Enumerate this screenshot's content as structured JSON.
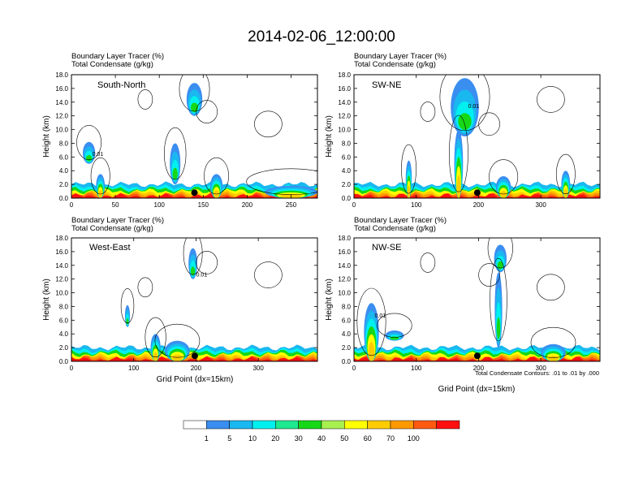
{
  "figure": {
    "title": "2014-02-06_12:00:00",
    "subtitle_line1": "Boundary Layer Tracer    (%)",
    "subtitle_line2": "Total Condensate    (g/kg)",
    "footnote": "Total Condensate Contours: .01 to .01 by .000",
    "xlabel": "Grid Point (dx=15km)",
    "ylabel": "Height (km)"
  },
  "colorbar": {
    "levels": [
      "1",
      "5",
      "10",
      "20",
      "30",
      "40",
      "50",
      "60",
      "70",
      "100"
    ],
    "colors": [
      "#ffffff",
      "#3a8ef0",
      "#1ab8f0",
      "#00f0f0",
      "#1ee890",
      "#16d816",
      "#a8f050",
      "#ffff00",
      "#ffcc00",
      "#ff9900",
      "#ff5a10",
      "#ff1010"
    ]
  },
  "chart_data": [
    {
      "type": "heatmap",
      "panel_label": "South-North",
      "title": "Boundary Layer Tracer (%) / Total Condensate (g/kg)",
      "xlabel": "",
      "ylabel": "Height (km)",
      "xlim": [
        0,
        280
      ],
      "ylim": [
        0,
        18
      ],
      "xticks": [
        "0",
        "50",
        "100",
        "150",
        "200",
        "250"
      ],
      "yticks": [
        "0.0",
        "2.0",
        "4.0",
        "6.0",
        "8.0",
        "10.0",
        "12.0",
        "14.0",
        "16.0",
        "18.0"
      ],
      "contour_label": "0.01",
      "marker": {
        "x": 140,
        "y": 0.8
      },
      "features": [
        {
          "x": 20,
          "top": 8.2,
          "base": 5.0,
          "w": 14
        },
        {
          "x": 33,
          "top": 3.5,
          "w": 10
        },
        {
          "x": 140,
          "top": 16.8,
          "base": 12.0,
          "w": 18
        },
        {
          "x": 118,
          "top": 8.0,
          "base": 2.0,
          "w": 12
        },
        {
          "x": 165,
          "top": 3.5,
          "w": 14
        },
        {
          "x": 250,
          "top": 1.8,
          "w": 60
        }
      ]
    },
    {
      "type": "heatmap",
      "panel_label": "SW-NE",
      "title": "Boundary Layer Tracer (%) / Total Condensate (g/kg)",
      "xlabel": "",
      "ylabel": "Height (km)",
      "xlim": [
        0,
        395
      ],
      "ylim": [
        0,
        18
      ],
      "xticks": [
        "0",
        "100",
        "200",
        "300"
      ],
      "yticks": [
        "0.0",
        "2.0",
        "4.0",
        "6.0",
        "8.0",
        "10.0",
        "12.0",
        "14.0",
        "16.0",
        "18.0"
      ],
      "contour_label": "0.01",
      "marker": {
        "x": 198,
        "y": 0.8
      },
      "features": [
        {
          "x": 178,
          "top": 17.5,
          "base": 9.0,
          "w": 45
        },
        {
          "x": 168,
          "top": 10.0,
          "w": 14
        },
        {
          "x": 88,
          "top": 5.5,
          "w": 10
        },
        {
          "x": 340,
          "top": 4.0,
          "w": 14
        },
        {
          "x": 240,
          "top": 3.2,
          "w": 24
        }
      ]
    },
    {
      "type": "heatmap",
      "panel_label": "West-East",
      "title": "Boundary Layer Tracer (%) / Total Condensate (g/kg)",
      "xlabel": "Grid Point (dx=15km)",
      "ylabel": "Height (km)",
      "xlim": [
        0,
        395
      ],
      "ylim": [
        0,
        18
      ],
      "xticks": [
        "0",
        "100",
        "200",
        "300"
      ],
      "yticks": [
        "0.0",
        "2.0",
        "4.0",
        "6.0",
        "8.0",
        "10.0",
        "12.0",
        "14.0",
        "16.0",
        "18.0"
      ],
      "contour_label": "0.01",
      "marker": {
        "x": 198,
        "y": 0.8
      },
      "features": [
        {
          "x": 195,
          "top": 16.5,
          "base": 12.0,
          "w": 14
        },
        {
          "x": 90,
          "top": 8.2,
          "base": 5.0,
          "w": 8
        },
        {
          "x": 135,
          "top": 4.0,
          "w": 16
        },
        {
          "x": 170,
          "top": 3.0,
          "w": 40
        }
      ]
    },
    {
      "type": "heatmap",
      "panel_label": "NW-SE",
      "title": "Boundary Layer Tracer (%) / Total Condensate (g/kg)",
      "xlabel": "Grid Point (dx=15km)",
      "ylabel": "Height (km)",
      "xlim": [
        0,
        395
      ],
      "ylim": [
        0,
        18
      ],
      "xticks": [
        "0",
        "100",
        "200",
        "300"
      ],
      "yticks": [
        "0.0",
        "2.0",
        "4.0",
        "6.0",
        "8.0",
        "10.0",
        "12.0",
        "14.0",
        "16.0",
        "18.0"
      ],
      "contour_label": "0.01",
      "marker": {
        "x": 198,
        "y": 0.8
      },
      "features": [
        {
          "x": 28,
          "top": 8.5,
          "w": 24
        },
        {
          "x": 65,
          "top": 4.5,
          "base": 3.0,
          "w": 30
        },
        {
          "x": 235,
          "top": 17.0,
          "base": 13.0,
          "w": 20
        },
        {
          "x": 232,
          "top": 13.0,
          "base": 2.0,
          "w": 12
        },
        {
          "x": 320,
          "top": 2.5,
          "w": 40
        }
      ]
    }
  ]
}
